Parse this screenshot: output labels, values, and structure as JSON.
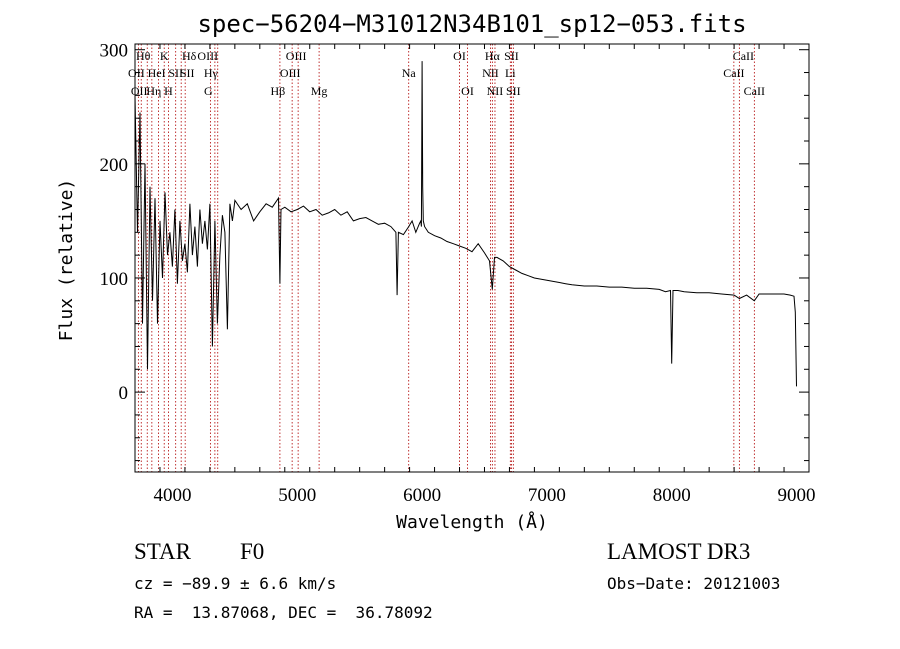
{
  "chart_data": {
    "type": "line",
    "title": "spec−56204−M31012N34B101_sp12−053.fits",
    "xlabel": "Wavelength (Å)",
    "ylabel": "Flux (relative)",
    "xlim": [
      3700,
      9100
    ],
    "ylim": [
      -70,
      305
    ],
    "xticks": [
      4000,
      5000,
      6000,
      7000,
      8000,
      9000
    ],
    "yticks": [
      0,
      100,
      200,
      300
    ],
    "xminor_step": 200,
    "yminor_step": 20,
    "series": [
      {
        "name": "flux",
        "x": [
          3700,
          3720,
          3740,
          3760,
          3780,
          3800,
          3820,
          3840,
          3860,
          3880,
          3900,
          3920,
          3940,
          3960,
          3980,
          4000,
          4020,
          4040,
          4060,
          4080,
          4100,
          4120,
          4140,
          4160,
          4180,
          4200,
          4220,
          4240,
          4260,
          4280,
          4300,
          4320,
          4340,
          4360,
          4380,
          4400,
          4420,
          4440,
          4460,
          4480,
          4500,
          4550,
          4600,
          4650,
          4700,
          4750,
          4800,
          4850,
          4861,
          4870,
          4900,
          4950,
          5000,
          5050,
          5100,
          5150,
          5200,
          5250,
          5300,
          5350,
          5400,
          5450,
          5500,
          5550,
          5600,
          5650,
          5700,
          5750,
          5790,
          5800,
          5810,
          5850,
          5893,
          5920,
          5950,
          5980,
          5990,
          5995,
          6000,
          6005,
          6010,
          6020,
          6050,
          6100,
          6150,
          6200,
          6250,
          6300,
          6350,
          6400,
          6450,
          6500,
          6540,
          6563,
          6580,
          6600,
          6650,
          6700,
          6750,
          6800,
          6850,
          6900,
          6950,
          7000,
          7050,
          7100,
          7150,
          7200,
          7300,
          7400,
          7500,
          7600,
          7700,
          7800,
          7900,
          7950,
          7990,
          8000,
          8010,
          8050,
          8100,
          8200,
          8300,
          8400,
          8500,
          8542,
          8600,
          8662,
          8700,
          8800,
          8900,
          8950,
          8980,
          8990,
          9000
        ],
        "y": [
          260,
          140,
          245,
          60,
          200,
          20,
          180,
          80,
          170,
          60,
          150,
          100,
          175,
          120,
          140,
          110,
          160,
          95,
          150,
          115,
          130,
          105,
          165,
          120,
          145,
          110,
          160,
          130,
          150,
          125,
          165,
          40,
          150,
          60,
          120,
          155,
          140,
          55,
          165,
          150,
          168,
          160,
          165,
          150,
          158,
          165,
          162,
          170,
          95,
          160,
          162,
          158,
          160,
          163,
          158,
          160,
          155,
          157,
          160,
          155,
          158,
          150,
          152,
          153,
          150,
          147,
          148,
          145,
          140,
          85,
          140,
          138,
          145,
          150,
          140,
          148,
          150,
          145,
          290,
          180,
          150,
          145,
          140,
          137,
          135,
          132,
          130,
          128,
          126,
          123,
          130,
          122,
          115,
          90,
          118,
          118,
          115,
          110,
          107,
          104,
          102,
          100,
          99,
          98,
          97,
          96,
          95,
          94,
          93,
          93,
          92,
          92,
          91,
          91,
          90,
          88,
          89,
          25,
          89,
          89,
          88,
          87,
          87,
          86,
          85,
          82,
          85,
          80,
          86,
          86,
          86,
          85,
          84,
          70,
          5
        ]
      }
    ],
    "spectral_lines": [
      {
        "wavelength": 3727,
        "label": "OII",
        "row": 1,
        "dx": -2
      },
      {
        "wavelength": 3750,
        "label": "OII",
        "row": 2,
        "dx": -2
      },
      {
        "wavelength": 3798,
        "label": "Hθ",
        "row": 0,
        "dx": -4
      },
      {
        "wavelength": 3835,
        "label": "Hη",
        "row": 2,
        "dx": 2
      },
      {
        "wavelength": 3889,
        "label": "HeI",
        "row": 1,
        "dx": -2
      },
      {
        "wavelength": 3934,
        "label": "K",
        "row": 0,
        "dx": 0
      },
      {
        "wavelength": 3968,
        "label": "H",
        "row": 2,
        "dx": 0
      },
      {
        "wavelength": 4026,
        "label": "SII",
        "row": 1,
        "dx": 0
      },
      {
        "wavelength": 4070,
        "label": "SII",
        "row": 1,
        "dx": 6
      },
      {
        "wavelength": 4102,
        "label": "Hδ",
        "row": 0,
        "dx": 4
      },
      {
        "wavelength": 4304,
        "label": "G",
        "row": 2,
        "dx": -2
      },
      {
        "wavelength": 4340,
        "label": "Hγ",
        "row": 1,
        "dx": -4
      },
      {
        "wavelength": 4363,
        "label": "OIII",
        "row": 0,
        "dx": -10
      },
      {
        "wavelength": 4861,
        "label": "Hβ",
        "row": 2,
        "dx": -2
      },
      {
        "wavelength": 4959,
        "label": "OIII",
        "row": 1,
        "dx": -2
      },
      {
        "wavelength": 5007,
        "label": "OIII",
        "row": 0,
        "dx": -2
      },
      {
        "wavelength": 5175,
        "label": "Mg",
        "row": 2,
        "dx": 0
      },
      {
        "wavelength": 5893,
        "label": "Na",
        "row": 1,
        "dx": 0
      },
      {
        "wavelength": 6300,
        "label": "OI",
        "row": 0,
        "dx": 0
      },
      {
        "wavelength": 6364,
        "label": "OI",
        "row": 2,
        "dx": 0
      },
      {
        "wavelength": 6548,
        "label": "NII",
        "row": 1,
        "dx": 0
      },
      {
        "wavelength": 6563,
        "label": "Hα",
        "row": 0,
        "dx": 0
      },
      {
        "wavelength": 6584,
        "label": "NII",
        "row": 2,
        "dx": 0
      },
      {
        "wavelength": 6707,
        "label": "Li",
        "row": 1,
        "dx": 0
      },
      {
        "wavelength": 6716,
        "label": "SII",
        "row": 0,
        "dx": 0
      },
      {
        "wavelength": 6731,
        "label": "SII",
        "row": 2,
        "dx": 0
      },
      {
        "wavelength": 8498,
        "label": "CaII",
        "row": 1,
        "dx": 0
      },
      {
        "wavelength": 8542,
        "label": "CaII",
        "row": 0,
        "dx": 4
      },
      {
        "wavelength": 8662,
        "label": "CaII",
        "row": 2,
        "dx": 0
      }
    ]
  },
  "info": {
    "class": "STAR",
    "subclass": "F0",
    "survey": "LAMOST DR3",
    "velocity": "cz = −89.9 ± 6.6 km/s",
    "obs_date": "Obs−Date: 20121003",
    "coords": "RA =  13.87068, DEC =  36.78092"
  }
}
